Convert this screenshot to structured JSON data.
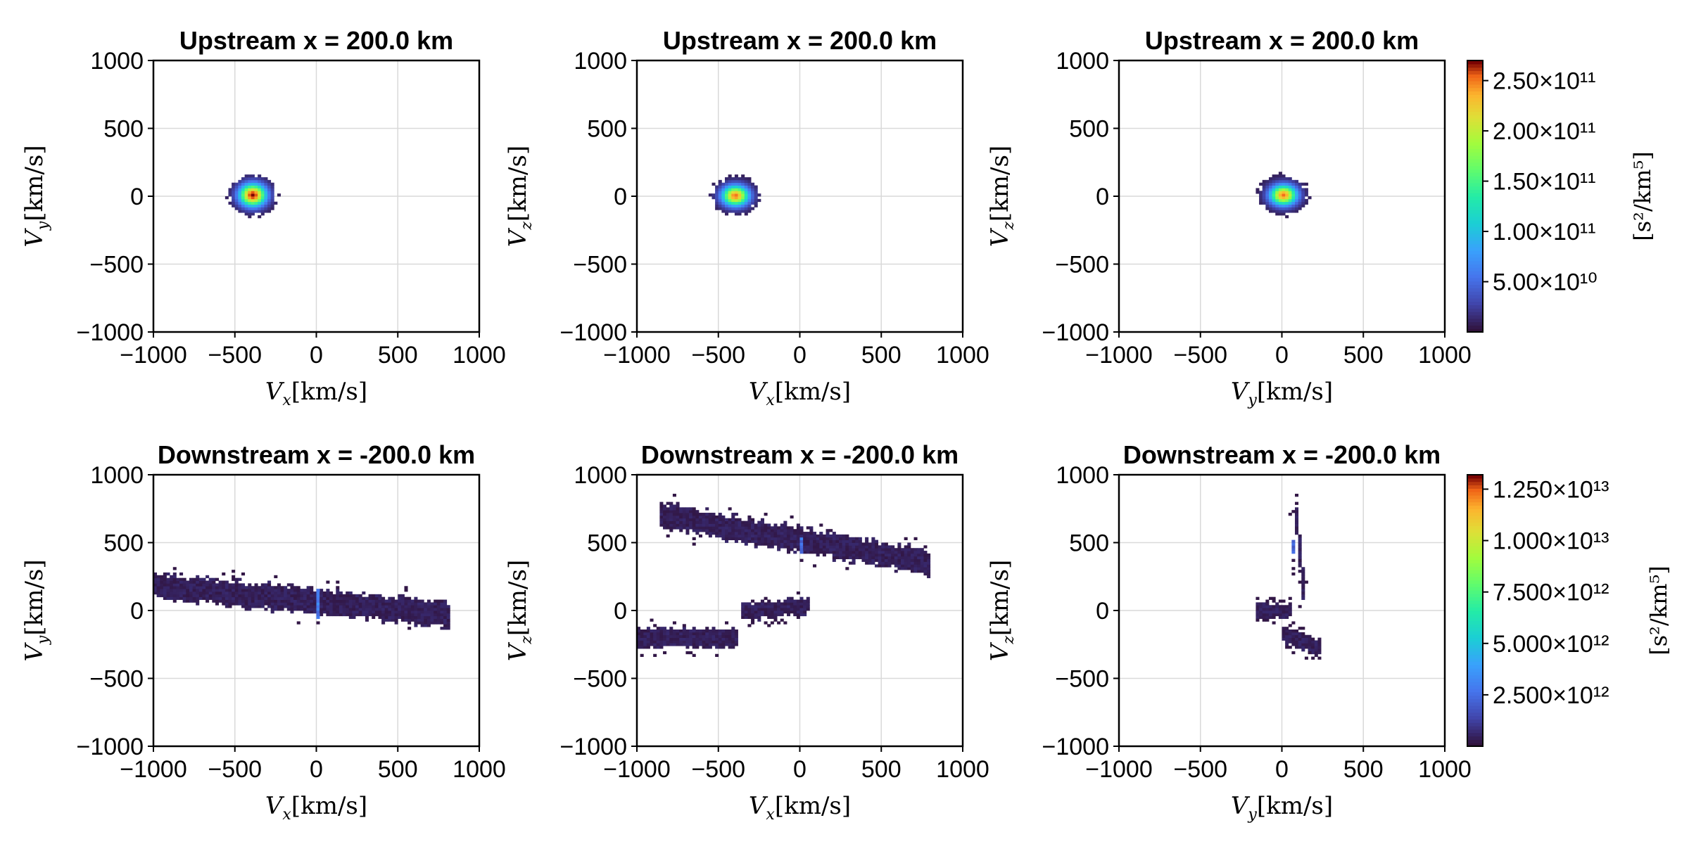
{
  "colors": {
    "background_cell": "#30123b",
    "grid": "#d9d9d9",
    "colormap": "turbo"
  },
  "chart_data": [
    {
      "type": "heatmap",
      "title": "Upstream x = 200.0 km",
      "xlabel": "V_x[km/s]",
      "ylabel": "V_y[km/s]",
      "xlim": [
        -1000,
        1000
      ],
      "ylim": [
        -1000,
        1000
      ],
      "xticks": [
        "−1000",
        "−500",
        "0",
        "500",
        "1000"
      ],
      "yticks": [
        "−1000",
        "−500",
        "0",
        "500",
        "1000"
      ],
      "grid": true,
      "colorscale_group": "upstream",
      "blobs": [
        {
          "cx": -400,
          "cy": 0,
          "sx": 55,
          "sy": 55,
          "peak": 1.0,
          "extent": 160
        }
      ]
    },
    {
      "type": "heatmap",
      "title": "Upstream x = 200.0 km",
      "xlabel": "V_x[km/s]",
      "ylabel": "V_z[km/s]",
      "xlim": [
        -1000,
        1000
      ],
      "ylim": [
        -1000,
        1000
      ],
      "xticks": [
        "−1000",
        "−500",
        "0",
        "500",
        "1000"
      ],
      "yticks": [
        "−1000",
        "−500",
        "0",
        "500",
        "1000"
      ],
      "grid": true,
      "colorscale_group": "upstream",
      "blobs": [
        {
          "cx": -400,
          "cy": 0,
          "sx": 55,
          "sy": 50,
          "peak": 0.92,
          "extent": 155
        }
      ]
    },
    {
      "type": "heatmap",
      "title": "Upstream x = 200.0 km",
      "xlabel": "V_y[km/s]",
      "ylabel": "V_z[km/s]",
      "xlim": [
        -1000,
        1000
      ],
      "ylim": [
        -1000,
        1000
      ],
      "xticks": [
        "−1000",
        "−500",
        "0",
        "500",
        "1000"
      ],
      "yticks": [
        "−1000",
        "−500",
        "0",
        "500",
        "1000"
      ],
      "grid": true,
      "colorscale_group": "upstream",
      "blobs": [
        {
          "cx": 0,
          "cy": 0,
          "sx": 55,
          "sy": 50,
          "peak": 0.92,
          "extent": 160
        }
      ]
    },
    {
      "type": "heatmap",
      "title": "Downstream x = -200.0 km",
      "xlabel": "V_x[km/s]",
      "ylabel": "V_y[km/s]",
      "xlim": [
        -1000,
        1000
      ],
      "ylim": [
        -1000,
        1000
      ],
      "xticks": [
        "−1000",
        "−500",
        "0",
        "500",
        "1000"
      ],
      "yticks": [
        "−1000",
        "−500",
        "0",
        "500",
        "1000"
      ],
      "grid": true,
      "colorscale_group": "downstream",
      "regions": [
        {
          "x0": -1000,
          "x1": 800,
          "y0_at_x0": 180,
          "y1_at_x1": -30,
          "halfwidth": 90
        }
      ],
      "spikes": [
        {
          "x": 0,
          "y0": -50,
          "y1": 150,
          "value": 0.22
        }
      ]
    },
    {
      "type": "heatmap",
      "title": "Downstream x = -200.0 km",
      "xlabel": "V_x[km/s]",
      "ylabel": "V_z[km/s]",
      "xlim": [
        -1000,
        1000
      ],
      "ylim": [
        -1000,
        1000
      ],
      "xticks": [
        "−1000",
        "−500",
        "0",
        "500",
        "1000"
      ],
      "yticks": [
        "−1000",
        "−500",
        "0",
        "500",
        "1000"
      ],
      "grid": true,
      "colorscale_group": "downstream",
      "regions": [
        {
          "x0": -850,
          "x1": 800,
          "y0_at_x0": 700,
          "y1_at_x1": 350,
          "halfwidth": 90
        },
        {
          "x0": -1000,
          "x1": -400,
          "y0_at_x0": -200,
          "y1_at_x1": -200,
          "halfwidth": 70
        },
        {
          "x0": -350,
          "x1": 50,
          "y0_at_x0": -20,
          "y1_at_x1": 40,
          "halfwidth": 60
        }
      ],
      "spikes": [
        {
          "x": 0,
          "y0": 420,
          "y1": 520,
          "value": 0.2
        }
      ]
    },
    {
      "type": "heatmap",
      "title": "Downstream x = -200.0 km",
      "xlabel": "V_y[km/s]",
      "ylabel": "V_z[km/s]",
      "xlim": [
        -1000,
        1000
      ],
      "ylim": [
        -1000,
        1000
      ],
      "xticks": [
        "−1000",
        "−500",
        "0",
        "500",
        "1000"
      ],
      "yticks": [
        "−1000",
        "−500",
        "0",
        "500",
        "1000"
      ],
      "grid": true,
      "colorscale_group": "downstream",
      "regions": [
        {
          "x0": 80,
          "x1": 120,
          "y0_at_x0": 650,
          "y1_at_x1": 200,
          "halfwidth": 130
        },
        {
          "x0": -150,
          "x1": 50,
          "y0_at_x0": 0,
          "y1_at_x1": 0,
          "halfwidth": 50
        },
        {
          "x0": 0,
          "x1": 230,
          "y0_at_x0": -180,
          "y1_at_x1": -280,
          "halfwidth": 60
        }
      ],
      "spikes": [
        {
          "x": 60,
          "y0": 420,
          "y1": 500,
          "value": 0.18
        }
      ]
    }
  ],
  "colorbars": [
    {
      "group": "upstream",
      "label": "[s²/km⁵]",
      "min": 0,
      "max": 270000000000,
      "ticks": [
        {
          "value": 50000000000,
          "label": "5.00×10¹⁰"
        },
        {
          "value": 100000000000,
          "label": "1.00×10¹¹"
        },
        {
          "value": 150000000000,
          "label": "1.50×10¹¹"
        },
        {
          "value": 200000000000,
          "label": "2.00×10¹¹"
        },
        {
          "value": 250000000000,
          "label": "2.50×10¹¹"
        }
      ]
    },
    {
      "group": "downstream",
      "label": "[s²/km⁵]",
      "min": 0,
      "max": 13200000000000,
      "ticks": [
        {
          "value": 2500000000000,
          "label": "2.500×10¹²"
        },
        {
          "value": 5000000000000,
          "label": "5.000×10¹²"
        },
        {
          "value": 7500000000000,
          "label": "7.500×10¹²"
        },
        {
          "value": 10000000000000,
          "label": "1.000×10¹³"
        },
        {
          "value": 12500000000000,
          "label": "1.250×10¹³"
        }
      ]
    }
  ]
}
